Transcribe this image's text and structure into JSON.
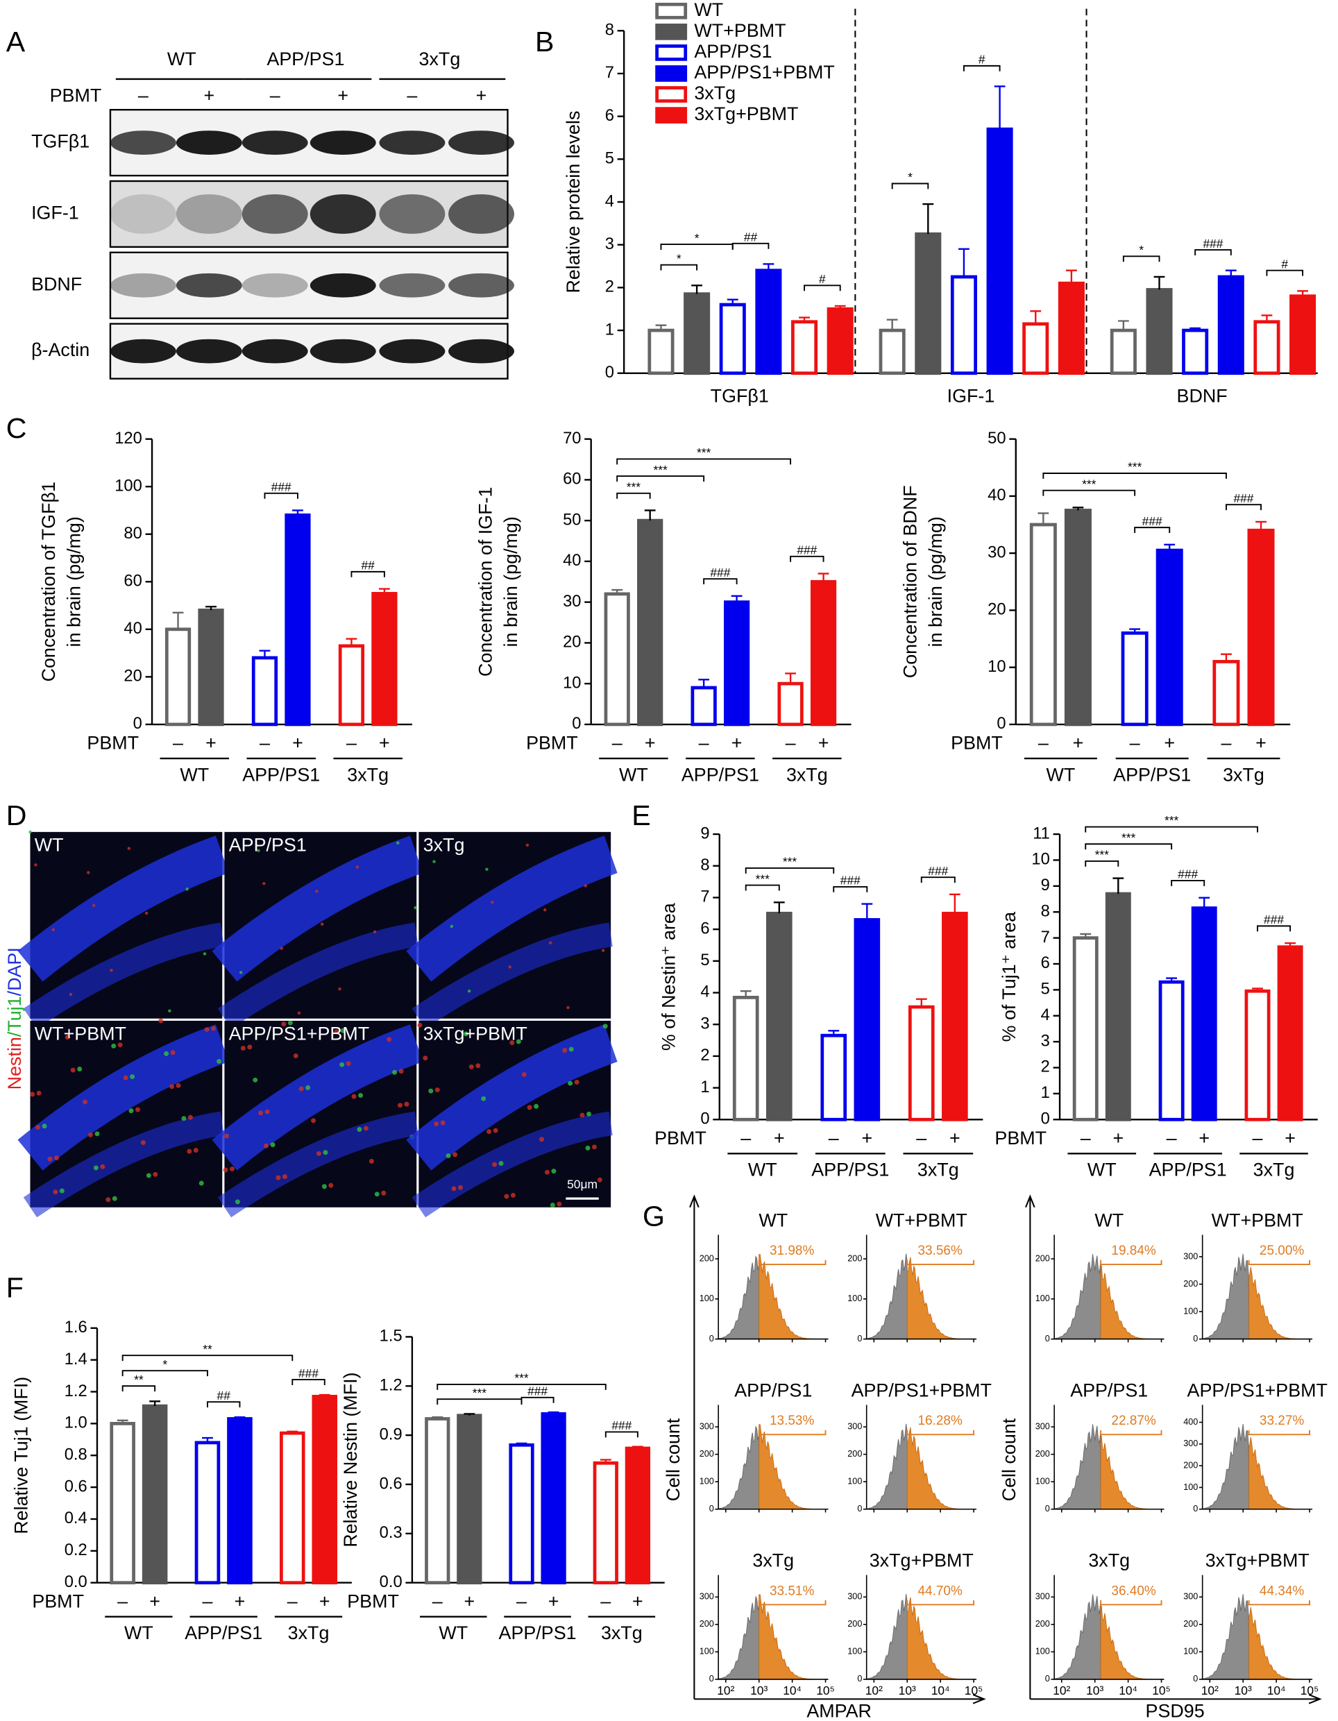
{
  "letters": [
    "A",
    "B",
    "C",
    "D",
    "E",
    "F",
    "G"
  ],
  "blot": {
    "groups": [
      "WT",
      "APP/PS1",
      "3xTg"
    ],
    "treatment": "PBMT",
    "signs": [
      "–",
      "+",
      "–",
      "+",
      "–",
      "+"
    ],
    "rows": [
      "TGFβ1",
      "IGF-1",
      "BDNF",
      "β-Actin"
    ]
  },
  "micro": {
    "tiles": [
      "WT",
      "APP/PS1",
      "3xTg",
      "WT+PBMT",
      "APP/PS1+PBMT",
      "3xTg+PBMT"
    ],
    "stain": [
      "Nestin",
      "/Tuj1",
      "/DAPI"
    ],
    "scale": "50μm"
  },
  "chart_data": [
    {
      "type": "grouped_bar",
      "ylabel": [
        "Relative protein levels"
      ],
      "categories": [
        "TGFβ1",
        "IGF-1",
        "BDNF"
      ],
      "ylim": [
        0,
        8
      ],
      "yticks": [
        0,
        1,
        2,
        3,
        4,
        5,
        6,
        7,
        8
      ],
      "series": [
        {
          "name": "WT",
          "color": "#666666",
          "fill": "#ffffff",
          "values": [
            1.0,
            1.0,
            1.0
          ],
          "errors": [
            0.12,
            0.25,
            0.22
          ]
        },
        {
          "name": "WT+PBMT",
          "color": "#555555",
          "fill": "#555555",
          "values": [
            1.85,
            3.25,
            1.95
          ],
          "errors": [
            0.2,
            0.7,
            0.3
          ]
        },
        {
          "name": "APP/PS1",
          "color": "#0000ee",
          "fill": "#ffffff",
          "values": [
            1.6,
            2.25,
            1.0
          ],
          "errors": [
            0.12,
            0.65,
            0.05
          ]
        },
        {
          "name": "APP/PS1+PBMT",
          "color": "#0000ee",
          "fill": "#0000ee",
          "values": [
            2.4,
            5.7,
            2.25
          ],
          "errors": [
            0.15,
            1.0,
            0.15
          ]
        },
        {
          "name": "3xTg",
          "color": "#ee1111",
          "fill": "#ffffff",
          "values": [
            1.2,
            1.15,
            1.2
          ],
          "errors": [
            0.1,
            0.3,
            0.15
          ]
        },
        {
          "name": "3xTg+PBMT",
          "color": "#ee1111",
          "fill": "#ee1111",
          "values": [
            1.5,
            2.1,
            1.8
          ],
          "errors": [
            0.07,
            0.3,
            0.12
          ]
        }
      ],
      "annotations": [
        {
          "category": 0,
          "text": "*",
          "from": 0,
          "to": 1
        },
        {
          "category": 0,
          "text": "*",
          "from": 0,
          "to": 2
        },
        {
          "category": 0,
          "text": "##",
          "from": 2,
          "to": 3
        },
        {
          "category": 0,
          "text": "#",
          "from": 4,
          "to": 5
        },
        {
          "category": 1,
          "text": "*",
          "from": 0,
          "to": 1
        },
        {
          "category": 1,
          "text": "#",
          "from": 2,
          "to": 3
        },
        {
          "category": 2,
          "text": "*",
          "from": 0,
          "to": 1
        },
        {
          "category": 2,
          "text": "###",
          "from": 2,
          "to": 3
        },
        {
          "category": 2,
          "text": "#",
          "from": 4,
          "to": 5
        }
      ]
    },
    {
      "type": "bar",
      "ylabel": [
        "Concentration of TGFβ1",
        "in brain (pg/mg)"
      ],
      "treatment": "PBMT",
      "categories": [
        "–",
        "+",
        "–",
        "+",
        "–",
        "+"
      ],
      "groups": [
        "WT",
        "APP/PS1",
        "3xTg"
      ],
      "colors": [
        "#666666",
        "#555555",
        "#0000ee",
        "#0000ee",
        "#ee1111",
        "#ee1111"
      ],
      "fills": [
        "#ffffff",
        "#555555",
        "#ffffff",
        "#0000ee",
        "#ffffff",
        "#ee1111"
      ],
      "values": [
        40,
        48,
        28,
        88,
        33,
        55
      ],
      "errors": [
        7,
        1.5,
        3,
        2,
        3,
        2
      ],
      "ylim": [
        0,
        120
      ],
      "yticks": [
        0,
        20,
        40,
        60,
        80,
        100,
        120
      ],
      "annotations": [
        {
          "text": "###",
          "from": 2,
          "to": 3
        },
        {
          "text": "##",
          "from": 4,
          "to": 5
        }
      ]
    },
    {
      "type": "bar",
      "ylabel": [
        "Concentration of IGF-1",
        "in brain (pg/mg)"
      ],
      "treatment": "PBMT",
      "categories": [
        "–",
        "+",
        "–",
        "+",
        "–",
        "+"
      ],
      "groups": [
        "WT",
        "APP/PS1",
        "3xTg"
      ],
      "colors": [
        "#666666",
        "#555555",
        "#0000ee",
        "#0000ee",
        "#ee1111",
        "#ee1111"
      ],
      "fills": [
        "#ffffff",
        "#555555",
        "#ffffff",
        "#0000ee",
        "#ffffff",
        "#ee1111"
      ],
      "values": [
        32,
        50,
        9,
        30,
        10,
        35
      ],
      "errors": [
        1,
        2.5,
        2,
        1.5,
        2.5,
        2
      ],
      "ylim": [
        0,
        70
      ],
      "yticks": [
        0,
        10,
        20,
        30,
        40,
        50,
        60,
        70
      ],
      "annotations": [
        {
          "text": "***",
          "from": 0,
          "to": 1
        },
        {
          "text": "***",
          "from": 0,
          "to": 2
        },
        {
          "text": "***",
          "from": 0,
          "to": 4
        },
        {
          "text": "###",
          "from": 2,
          "to": 3
        },
        {
          "text": "###",
          "from": 4,
          "to": 5
        }
      ]
    },
    {
      "type": "bar",
      "ylabel": [
        "Concentration of BDNF",
        "in brain (pg/mg)"
      ],
      "treatment": "PBMT",
      "categories": [
        "–",
        "+",
        "–",
        "+",
        "–",
        "+"
      ],
      "groups": [
        "WT",
        "APP/PS1",
        "3xTg"
      ],
      "colors": [
        "#666666",
        "#555555",
        "#0000ee",
        "#0000ee",
        "#ee1111",
        "#ee1111"
      ],
      "fills": [
        "#ffffff",
        "#555555",
        "#ffffff",
        "#0000ee",
        "#ffffff",
        "#ee1111"
      ],
      "values": [
        35,
        37.5,
        16,
        30.5,
        11,
        34
      ],
      "errors": [
        2,
        0.5,
        0.7,
        1,
        1.3,
        1.5
      ],
      "ylim": [
        0,
        50
      ],
      "yticks": [
        0,
        10,
        20,
        30,
        40,
        50
      ],
      "annotations": [
        {
          "text": "***",
          "from": 0,
          "to": 2
        },
        {
          "text": "***",
          "from": 0,
          "to": 4
        },
        {
          "text": "###",
          "from": 2,
          "to": 3
        },
        {
          "text": "###",
          "from": 4,
          "to": 5
        }
      ]
    },
    {
      "type": "bar",
      "ylabel": [
        "% of Nestin⁺ area"
      ],
      "treatment": "PBMT",
      "categories": [
        "–",
        "+",
        "–",
        "+",
        "–",
        "+"
      ],
      "groups": [
        "WT",
        "APP/PS1",
        "3xTg"
      ],
      "colors": [
        "#666666",
        "#555555",
        "#0000ee",
        "#0000ee",
        "#ee1111",
        "#ee1111"
      ],
      "fills": [
        "#ffffff",
        "#555555",
        "#ffffff",
        "#0000ee",
        "#ffffff",
        "#ee1111"
      ],
      "values": [
        3.85,
        6.5,
        2.65,
        6.3,
        3.55,
        6.5
      ],
      "errors": [
        0.2,
        0.35,
        0.15,
        0.5,
        0.25,
        0.6
      ],
      "ylim": [
        0,
        9
      ],
      "yticks": [
        0,
        1,
        2,
        3,
        4,
        5,
        6,
        7,
        8,
        9
      ],
      "annotations": [
        {
          "text": "***",
          "from": 0,
          "to": 1
        },
        {
          "text": "***",
          "from": 0,
          "to": 2
        },
        {
          "text": "###",
          "from": 2,
          "to": 3
        },
        {
          "text": "###",
          "from": 4,
          "to": 5
        }
      ]
    },
    {
      "type": "bar",
      "ylabel": [
        "% of Tuj1⁺ area"
      ],
      "treatment": "PBMT",
      "categories": [
        "–",
        "+",
        "–",
        "+",
        "–",
        "+"
      ],
      "groups": [
        "WT",
        "APP/PS1",
        "3xTg"
      ],
      "colors": [
        "#666666",
        "#555555",
        "#0000ee",
        "#0000ee",
        "#ee1111",
        "#ee1111"
      ],
      "fills": [
        "#ffffff",
        "#555555",
        "#ffffff",
        "#0000ee",
        "#ffffff",
        "#ee1111"
      ],
      "values": [
        7.0,
        8.7,
        5.3,
        8.15,
        4.95,
        6.65
      ],
      "errors": [
        0.15,
        0.6,
        0.15,
        0.4,
        0.1,
        0.15
      ],
      "ylim": [
        0,
        11
      ],
      "yticks": [
        0,
        1,
        2,
        3,
        4,
        5,
        6,
        7,
        8,
        9,
        10,
        11
      ],
      "annotations": [
        {
          "text": "***",
          "from": 0,
          "to": 1
        },
        {
          "text": "***",
          "from": 0,
          "to": 2
        },
        {
          "text": "***",
          "from": 0,
          "to": 4
        },
        {
          "text": "###",
          "from": 2,
          "to": 3
        },
        {
          "text": "###",
          "from": 4,
          "to": 5
        }
      ]
    },
    {
      "type": "bar",
      "ylabel": [
        "Relative Tuj1 (MFI)"
      ],
      "treatment": "PBMT",
      "categories": [
        "–",
        "+",
        "–",
        "+",
        "–",
        "+"
      ],
      "groups": [
        "WT",
        "APP/PS1",
        "3xTg"
      ],
      "colors": [
        "#666666",
        "#555555",
        "#0000ee",
        "#0000ee",
        "#ee1111",
        "#ee1111"
      ],
      "fills": [
        "#ffffff",
        "#555555",
        "#ffffff",
        "#0000ee",
        "#ffffff",
        "#ee1111"
      ],
      "values": [
        1.0,
        1.11,
        0.88,
        1.03,
        0.94,
        1.17
      ],
      "errors": [
        0.02,
        0.03,
        0.03,
        0.01,
        0.01,
        0.01
      ],
      "ylim": [
        0,
        1.6
      ],
      "yticks": [
        {
          "value": 0,
          "label": "0.0"
        },
        0.2,
        0.4,
        0.6,
        0.8,
        {
          "value": 1,
          "label": "1.0"
        },
        1.2,
        1.4,
        1.6
      ],
      "annotations": [
        {
          "text": "**",
          "from": 0,
          "to": 1
        },
        {
          "text": "*",
          "from": 0,
          "to": 2
        },
        {
          "text": "**",
          "from": 0,
          "to": 4
        },
        {
          "text": "##",
          "from": 2,
          "to": 3
        },
        {
          "text": "###",
          "from": 4,
          "to": 5
        }
      ]
    },
    {
      "type": "bar",
      "ylabel": [
        "Relative Nestin (MFI)"
      ],
      "treatment": "PBMT",
      "categories": [
        "–",
        "+",
        "–",
        "+",
        "–",
        "+"
      ],
      "groups": [
        "WT",
        "APP/PS1",
        "3xTg"
      ],
      "colors": [
        "#666666",
        "#555555",
        "#0000ee",
        "#0000ee",
        "#ee1111",
        "#ee1111"
      ],
      "fills": [
        "#ffffff",
        "#555555",
        "#ffffff",
        "#0000ee",
        "#ffffff",
        "#ee1111"
      ],
      "values": [
        1.0,
        1.02,
        0.84,
        1.03,
        0.73,
        0.82
      ],
      "errors": [
        0.01,
        0.01,
        0.01,
        0.01,
        0.02,
        0.01
      ],
      "ylim": [
        0,
        1.5
      ],
      "yticks": [
        {
          "value": 0,
          "label": "0.0"
        },
        0.3,
        0.6,
        0.9,
        1.2,
        1.5
      ],
      "annotations": [
        {
          "text": "***",
          "from": 0,
          "to": 2
        },
        {
          "text": "***",
          "from": 0,
          "to": 4
        },
        {
          "text": "###",
          "from": 2,
          "to": 3
        },
        {
          "text": "###",
          "from": 4,
          "to": 5
        }
      ]
    }
  ],
  "flow": {
    "xlim": [
      60,
      120000
    ],
    "xlog": true,
    "xticks": [
      {
        "value": 100,
        "label": "10²"
      },
      {
        "value": 1000,
        "label": "10³"
      },
      {
        "value": 10000,
        "label": "10⁴"
      },
      {
        "value": 100000,
        "label": "10⁵"
      }
    ],
    "blocks": [
      {
        "xlabel": "AMPAR",
        "ylabel": "Cell count",
        "gate_start": 1000,
        "plots": [
          {
            "title": "WT",
            "percent": "31.98%",
            "ylim": [
              0,
              260
            ],
            "yticks": [
              0,
              100,
              200
            ]
          },
          {
            "title": "WT+PBMT",
            "percent": "33.56%",
            "ylim": [
              0,
              260
            ],
            "yticks": [
              0,
              100,
              200
            ]
          },
          {
            "title": "APP/PS1",
            "percent": "13.53%",
            "ylim": [
              0,
              380
            ],
            "yticks": [
              0,
              100,
              200,
              300
            ]
          },
          {
            "title": "APP/PS1+PBMT",
            "percent": "16.28%",
            "ylim": [
              0,
              380
            ],
            "yticks": [
              0,
              100,
              200,
              300
            ]
          },
          {
            "title": "3xTg",
            "percent": "33.51%",
            "ylim": [
              0,
              380
            ],
            "yticks": [
              0,
              100,
              200,
              300
            ]
          },
          {
            "title": "3xTg+PBMT",
            "percent": "44.70%",
            "ylim": [
              0,
              380
            ],
            "yticks": [
              0,
              100,
              200,
              300
            ]
          }
        ]
      },
      {
        "xlabel": "PSD95",
        "ylabel": "Cell count",
        "gate_start": 1500,
        "plots": [
          {
            "title": "WT",
            "percent": "19.84%",
            "ylim": [
              0,
              260
            ],
            "yticks": [
              0,
              100,
              200
            ]
          },
          {
            "title": "WT+PBMT",
            "percent": "25.00%",
            "ylim": [
              0,
              380
            ],
            "yticks": [
              0,
              100,
              200,
              300
            ]
          },
          {
            "title": "APP/PS1",
            "percent": "22.87%",
            "ylim": [
              0,
              380
            ],
            "yticks": [
              0,
              100,
              200,
              300
            ]
          },
          {
            "title": "APP/PS1+PBMT",
            "percent": "33.27%",
            "ylim": [
              0,
              480
            ],
            "yticks": [
              0,
              100,
              200,
              300,
              400
            ]
          },
          {
            "title": "3xTg",
            "percent": "36.40%",
            "ylim": [
              0,
              380
            ],
            "yticks": [
              0,
              100,
              200,
              300
            ]
          },
          {
            "title": "3xTg+PBMT",
            "percent": "44.34%",
            "ylim": [
              0,
              380
            ],
            "yticks": [
              0,
              100,
              200,
              300
            ]
          }
        ]
      }
    ]
  }
}
